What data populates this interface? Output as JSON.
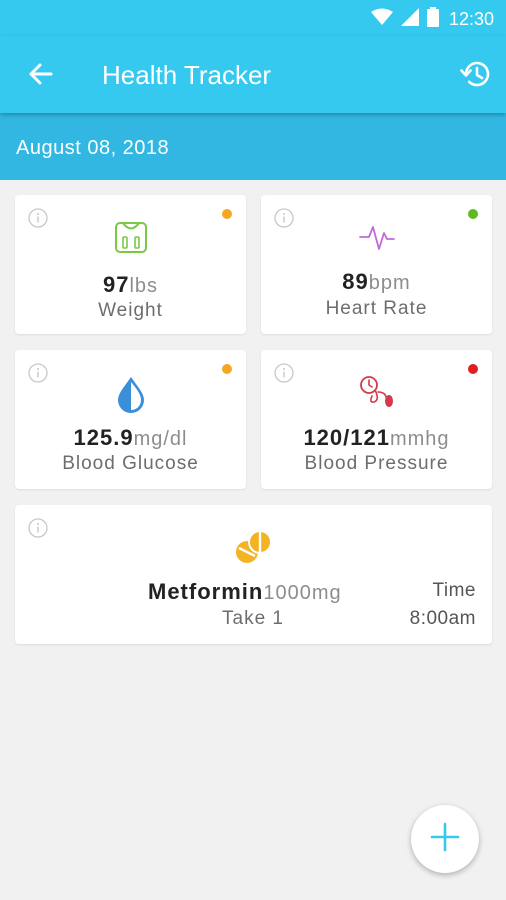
{
  "status_bar": {
    "time": "12:30"
  },
  "app_bar": {
    "title": "Health Tracker"
  },
  "date_bar": {
    "date": "August 08, 2018"
  },
  "colors": {
    "primary": "#35c9f0",
    "date_bar": "#31b7e2",
    "status_orange": "#f5a623",
    "status_green": "#5dbb1f",
    "status_red": "#e02020",
    "weight_icon": "#7ac943",
    "heart_icon": "#c06ad8",
    "glucose_icon": "#3a8fd8",
    "bp_icon": "#d33a4a",
    "pill_icon": "#f3b322"
  },
  "cards": {
    "weight": {
      "value": "97",
      "unit": "lbs",
      "label": "Weight",
      "icon": "scale-icon",
      "status": "orange"
    },
    "heart_rate": {
      "value": "89",
      "unit": "bpm",
      "label": "Heart Rate",
      "icon": "heartbeat-icon",
      "status": "green"
    },
    "glucose": {
      "value": "125.9",
      "unit": "mg/dl",
      "label": "Blood Glucose",
      "icon": "drop-icon",
      "status": "orange"
    },
    "blood_pressure": {
      "value": "120/121",
      "unit": "mmhg",
      "label": "Blood Pressure",
      "icon": "bp-monitor-icon",
      "status": "red"
    }
  },
  "medication": {
    "name": "Metformin",
    "dose": "1000mg",
    "take": "Take 1",
    "time_label": "Time",
    "time_value": "8:00am",
    "icon": "pills-icon"
  },
  "fab": {
    "icon": "plus-icon"
  }
}
